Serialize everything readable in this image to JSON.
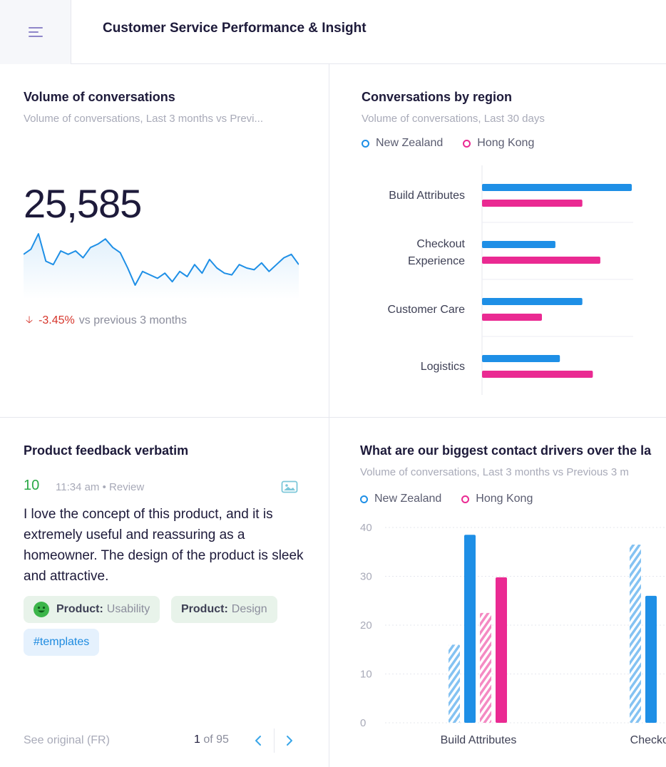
{
  "app": {
    "title": "Customer Service Performance & Insight"
  },
  "colors": {
    "new_zealand": "#1e8fe6",
    "hong_kong": "#ea2a92",
    "negative": "#d6352b",
    "positive": "#2aa846"
  },
  "volume_card": {
    "title": "Volume of conversations",
    "subtitle": "Volume of conversations, Last 3 months vs Previ...",
    "total": "25,585",
    "delta_pct": "-3.45%",
    "delta_text": "vs previous 3 months"
  },
  "region_card": {
    "title": "Conversations by region",
    "subtitle": "Volume of conversations, Last 30 days",
    "legend": [
      "New Zealand",
      "Hong Kong"
    ]
  },
  "feedback_card": {
    "title": "Product feedback verbatim",
    "score": "10",
    "time": "11:34 am",
    "source": "Review",
    "text": "I love the concept of this product, and it is extremely useful and reassuring as a homeowner. The design of the product is sleek and attractive.",
    "tags": [
      {
        "key": "Product:",
        "value": "Usability"
      },
      {
        "key": "Product:",
        "value": "Design"
      }
    ],
    "hashtag": "#templates",
    "see_original": "See original (FR)",
    "page_current": "1",
    "page_of": "of 95"
  },
  "drivers_card": {
    "title": "What are our biggest contact drivers over the la",
    "subtitle": "Volume of conversations, Last 3 months vs Previous 3 m",
    "legend": [
      "New Zealand",
      "Hong Kong"
    ]
  },
  "chart_data": [
    {
      "type": "line",
      "values": [
        18,
        21,
        30,
        14,
        12,
        20,
        18,
        20,
        16,
        22,
        24,
        27,
        22,
        19,
        10,
        0,
        8,
        6,
        4,
        7,
        2,
        8,
        5,
        12,
        7,
        15,
        10,
        7,
        6,
        12,
        10,
        9,
        13,
        8,
        12,
        16,
        18,
        12
      ],
      "title": "",
      "xlabel": "",
      "ylabel": ""
    },
    {
      "type": "bar",
      "orientation": "horizontal",
      "categories": [
        "Build Attributes",
        "Checkout Experience",
        "Customer Care",
        "Logistics"
      ],
      "series": [
        {
          "name": "New Zealand",
          "values": [
            100,
            49,
            67,
            52
          ]
        },
        {
          "name": "Hong Kong",
          "values": [
            67,
            79,
            40,
            74
          ]
        }
      ],
      "xlim": [
        0,
        100
      ]
    },
    {
      "type": "bar",
      "categories": [
        "Build Attributes",
        "Checkout E"
      ],
      "series": [
        {
          "name": "New Zealand (previous)",
          "pattern": "striped",
          "values": [
            16,
            36.5
          ]
        },
        {
          "name": "New Zealand",
          "values": [
            38.5,
            26
          ]
        },
        {
          "name": "Hong Kong (previous)",
          "pattern": "striped",
          "values": [
            22.5,
            null
          ]
        },
        {
          "name": "Hong Kong",
          "values": [
            29.8,
            null
          ]
        }
      ],
      "yticks": [
        "40",
        "30",
        "20",
        "10",
        "0"
      ],
      "ylim": [
        0,
        40
      ],
      "grid": true
    }
  ]
}
